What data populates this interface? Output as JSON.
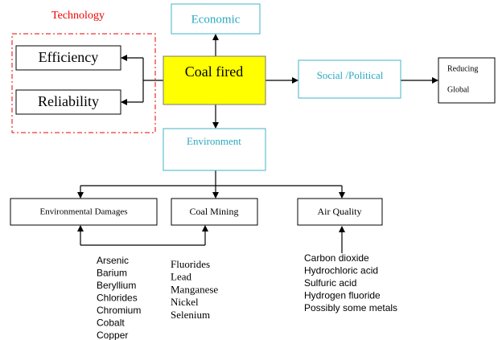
{
  "group_label": "Technology",
  "nodes": {
    "efficiency": "Efficiency",
    "reliability": "Reliability",
    "coal_fired": "Coal fired",
    "economic": "Economic",
    "social_political": "Social /Political",
    "reducing_global": [
      "Reducing",
      "Global"
    ],
    "environment": "Environment",
    "environmental_damages": "Environmental Damages",
    "coal_mining": "Coal Mining",
    "air_quality": "Air Quality"
  },
  "lists": {
    "damages": [
      "Arsenic",
      "Barium",
      "Beryllium",
      "Chlorides",
      "Chromium",
      "Cobalt",
      "Copper"
    ],
    "mining": [
      "Fluorides",
      "Lead",
      "Manganese",
      "Nickel",
      "Selenium"
    ],
    "air": [
      "Carbon dioxide",
      "Hydrochloric acid",
      "Sulfuric acid",
      "Hydrogen fluoride",
      "Possibly some metals"
    ]
  }
}
